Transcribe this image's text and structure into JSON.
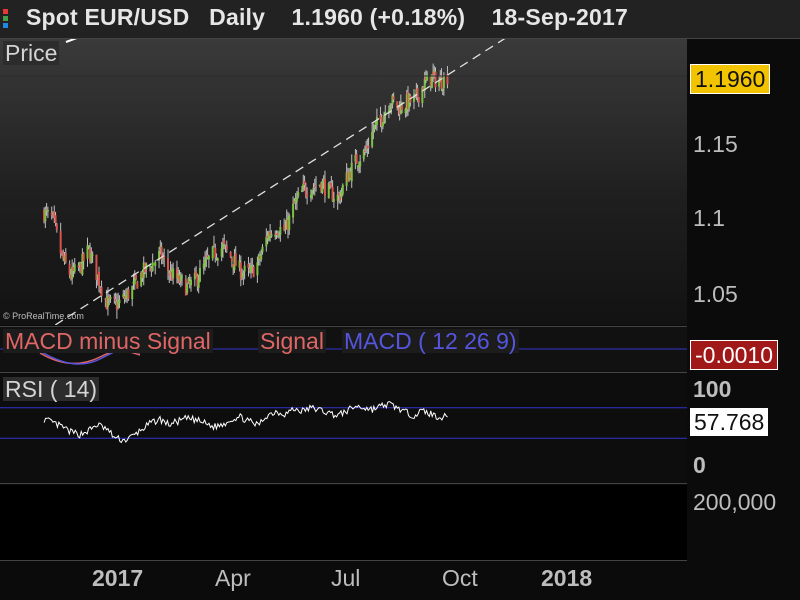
{
  "header": {
    "title": "Spot EUR/USD   Daily    1.1960 (+0.18%)    18-Sep-2017",
    "dot_colors": [
      "#e53935",
      "#43a047",
      "#1e88e5"
    ]
  },
  "price_pane": {
    "label": "Price",
    "current_value": "1.1960",
    "watermark": "© ProRealTime.com",
    "y_ticks": [
      "1.15",
      "1.1",
      "1.05"
    ]
  },
  "macd_pane": {
    "label_minus": "MACD minus Signal",
    "label_signal": "Signal",
    "label_macd": "MACD ( 12 26 9)",
    "current_value": "-0.0010"
  },
  "rsi_pane": {
    "label": "RSI ( 14)",
    "current_value": "57.768",
    "y_ticks": [
      "100",
      "0"
    ]
  },
  "volume_pane": {
    "y_tick": "200,000"
  },
  "x_axis": {
    "labels": [
      "2017",
      "Apr",
      "Jul",
      "Oct",
      "2018"
    ]
  },
  "chart_data": [
    {
      "type": "candlestick",
      "title": "Spot EUR/USD Daily",
      "ylabel": "Price",
      "ylim": [
        1.03,
        1.21
      ],
      "y_ticks": [
        1.05,
        1.1,
        1.15
      ],
      "x_range": [
        "2016-11-01",
        "2018-01-10"
      ],
      "x_tick_labels": [
        "2017",
        "Apr",
        "Jul",
        "Oct",
        "2018"
      ],
      "close_series": [
        [
          "2016-11-01",
          1.105
        ],
        [
          "2016-11-08",
          1.1
        ],
        [
          "2016-11-15",
          1.075
        ],
        [
          "2016-11-22",
          1.063
        ],
        [
          "2016-11-29",
          1.068
        ],
        [
          "2016-12-06",
          1.08
        ],
        [
          "2016-12-13",
          1.062
        ],
        [
          "2016-12-20",
          1.045
        ],
        [
          "2016-12-27",
          1.043
        ],
        [
          "2017-01-03",
          1.048
        ],
        [
          "2017-01-10",
          1.055
        ],
        [
          "2017-01-17",
          1.065
        ],
        [
          "2017-01-24",
          1.07
        ],
        [
          "2017-01-31",
          1.077
        ],
        [
          "2017-02-07",
          1.065
        ],
        [
          "2017-02-14",
          1.06
        ],
        [
          "2017-02-21",
          1.055
        ],
        [
          "2017-02-28",
          1.06
        ],
        [
          "2017-03-07",
          1.07
        ],
        [
          "2017-03-14",
          1.078
        ],
        [
          "2017-03-21",
          1.082
        ],
        [
          "2017-03-28",
          1.074
        ],
        [
          "2017-04-04",
          1.066
        ],
        [
          "2017-04-11",
          1.064
        ],
        [
          "2017-04-18",
          1.072
        ],
        [
          "2017-04-25",
          1.09
        ],
        [
          "2017-05-02",
          1.095
        ],
        [
          "2017-05-09",
          1.093
        ],
        [
          "2017-05-16",
          1.11
        ],
        [
          "2017-05-23",
          1.12
        ],
        [
          "2017-05-30",
          1.122
        ],
        [
          "2017-06-06",
          1.125
        ],
        [
          "2017-06-13",
          1.118
        ],
        [
          "2017-06-20",
          1.115
        ],
        [
          "2017-06-27",
          1.13
        ],
        [
          "2017-07-04",
          1.14
        ],
        [
          "2017-07-11",
          1.145
        ],
        [
          "2017-07-18",
          1.16
        ],
        [
          "2017-07-25",
          1.168
        ],
        [
          "2017-08-01",
          1.18
        ],
        [
          "2017-08-08",
          1.175
        ],
        [
          "2017-08-15",
          1.178
        ],
        [
          "2017-08-22",
          1.18
        ],
        [
          "2017-08-29",
          1.19
        ],
        [
          "2017-09-05",
          1.195
        ],
        [
          "2017-09-12",
          1.192
        ],
        [
          "2017-09-18",
          1.196
        ]
      ],
      "trendline": [
        [
          "2016-11-30",
          1.041
        ],
        [
          "2017-10-10",
          1.208
        ]
      ],
      "last_value": 1.196
    },
    {
      "type": "line",
      "title": "MACD ( 12 26 9)",
      "series": [
        {
          "name": "MACD minus Signal",
          "color": "#e06666"
        },
        {
          "name": "Signal",
          "color": "#e06666"
        },
        {
          "name": "MACD ( 12 26 9)",
          "color": "#3333cc"
        }
      ],
      "last_value": -0.001
    },
    {
      "type": "line",
      "title": "RSI ( 14)",
      "ylim": [
        0,
        100
      ],
      "y_ticks": [
        0,
        100
      ],
      "series": [
        {
          "name": "RSI ( 14)",
          "color": "#ffffff",
          "values": [
            55,
            50,
            45,
            38,
            35,
            40,
            48,
            42,
            30,
            27,
            33,
            42,
            50,
            55,
            48,
            52,
            56,
            54,
            50,
            45,
            48,
            55,
            58,
            52,
            47,
            60,
            65,
            62,
            68,
            66,
            70,
            67,
            63,
            60,
            66,
            72,
            70,
            68,
            72,
            75,
            70,
            64,
            60,
            66,
            62,
            58,
            57.768
          ]
        }
      ],
      "last_value": 57.768
    }
  ]
}
